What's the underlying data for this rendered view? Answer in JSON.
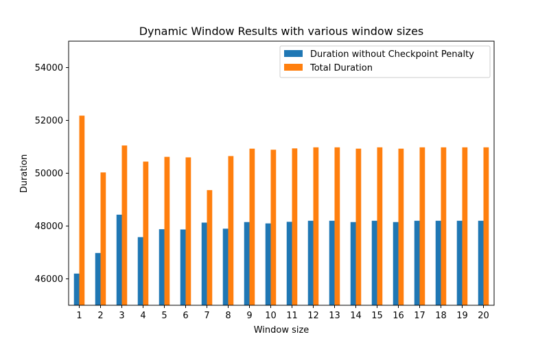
{
  "chart_data": {
    "type": "bar",
    "title": "Dynamic Window Results with various window sizes",
    "xlabel": "Window size",
    "ylabel": "Duration",
    "ylim": [
      45000,
      55000
    ],
    "yticks": [
      46000,
      48000,
      50000,
      52000,
      54000
    ],
    "categories": [
      "1",
      "2",
      "3",
      "4",
      "5",
      "6",
      "7",
      "8",
      "9",
      "10",
      "11",
      "12",
      "13",
      "14",
      "15",
      "16",
      "17",
      "18",
      "19",
      "20"
    ],
    "series": [
      {
        "name": "Duration without Checkpoint Penalty",
        "color": "#1f77b4",
        "values": [
          46200,
          46980,
          48430,
          47580,
          47880,
          47870,
          48130,
          47900,
          48150,
          48100,
          48160,
          48200,
          48200,
          48150,
          48200,
          48150,
          48200,
          48200,
          48200,
          48200
        ]
      },
      {
        "name": "Total Duration",
        "color": "#ff7f0e",
        "values": [
          52180,
          50030,
          51050,
          50440,
          50620,
          50600,
          49360,
          50650,
          50930,
          50890,
          50940,
          50980,
          50980,
          50930,
          50980,
          50930,
          50980,
          50980,
          50980,
          50980
        ]
      }
    ],
    "legend_position": "top-right",
    "grid": false
  }
}
